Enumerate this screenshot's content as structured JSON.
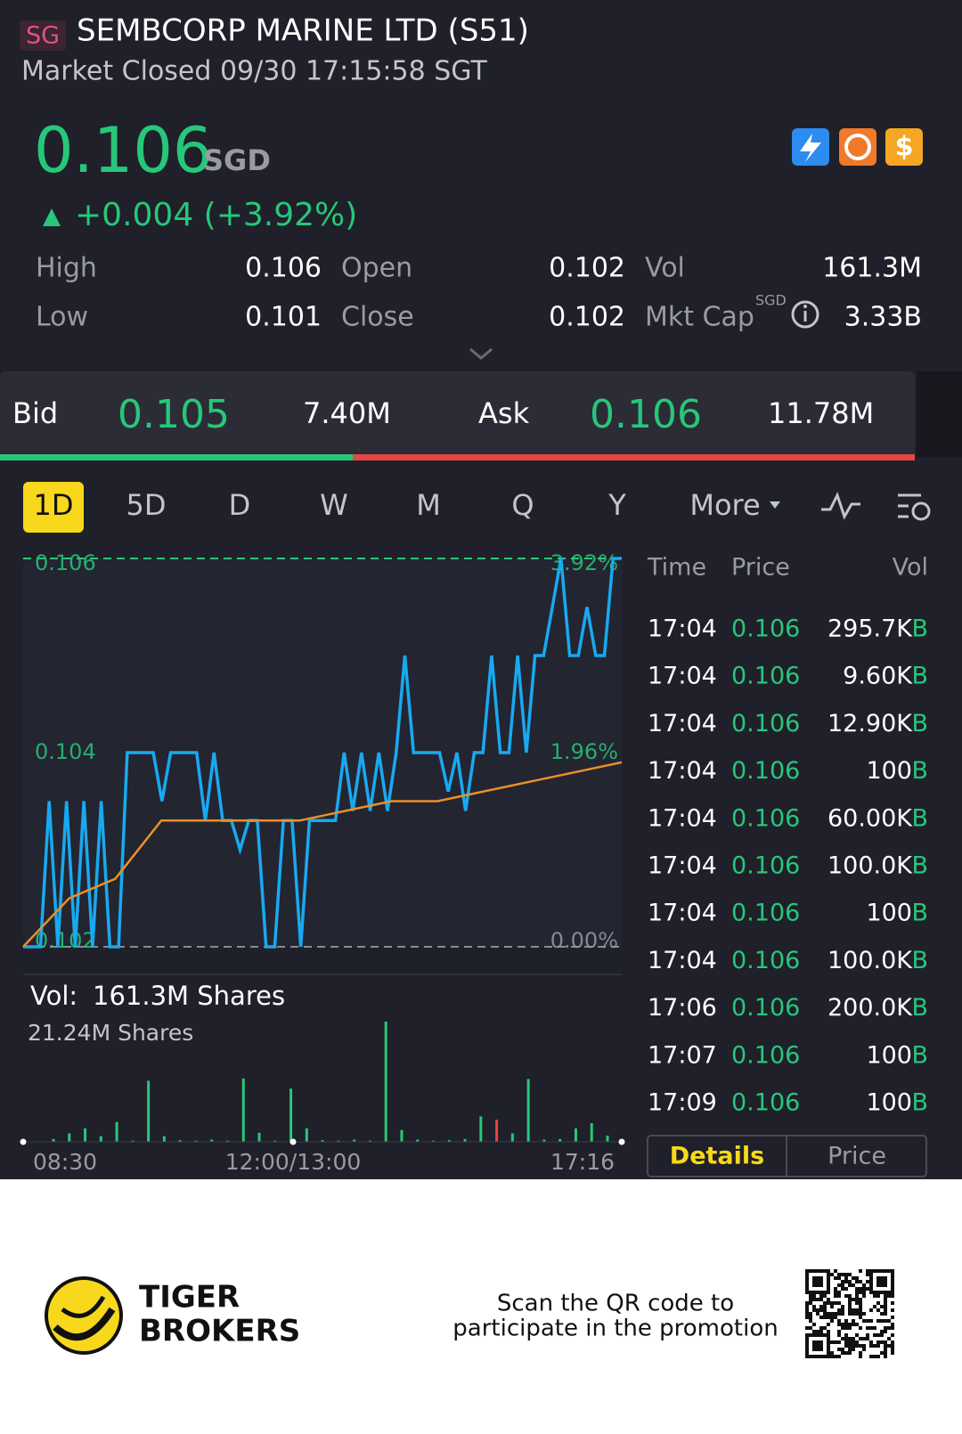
{
  "header": {
    "badge": "SG",
    "title": "SEMBCORP MARINE LTD (S51)",
    "status": "Market Closed 09/30 17:15:58 SGT"
  },
  "quote": {
    "price": "0.106",
    "currency": "SGD",
    "change": "+0.004 (+3.92%)"
  },
  "stats": {
    "rows": [
      [
        "High",
        "0.106",
        "Open",
        "0.102",
        "Vol",
        "161.3M"
      ],
      [
        "Low",
        "0.101",
        "Close",
        "0.102",
        "Mkt Cap",
        "3.33B"
      ]
    ],
    "mkt_cap_currency": "SGD"
  },
  "bid_ask": {
    "bid_label": "Bid",
    "bid": "0.105",
    "bid_size": "7.40M",
    "ask_label": "Ask",
    "ask": "0.106",
    "ask_size": "11.78M"
  },
  "tabs": [
    "1D",
    "5D",
    "D",
    "W",
    "M",
    "Q",
    "Y",
    "More"
  ],
  "chart_data": {
    "type": "line",
    "ylim": [
      0.102,
      0.106
    ],
    "yticks": [
      0.106,
      0.104,
      0.102
    ],
    "y2lim": [
      0,
      3.92
    ],
    "y2ticks": [
      {
        "value": 3.92,
        "label": "3.92%"
      },
      {
        "value": 1.96,
        "label": "1.96%"
      },
      {
        "value": 0,
        "label": "0.00%"
      }
    ],
    "series": [
      {
        "color": "#18a9f0",
        "values": [
          0.102,
          0.102,
          0.102,
          0.1035,
          0.102,
          0.1035,
          0.102,
          0.1035,
          0.102,
          0.1035,
          0.102,
          0.102,
          0.104,
          0.104,
          0.104,
          0.104,
          0.1035,
          0.104,
          0.104,
          0.104,
          0.104,
          0.1033,
          0.104,
          0.1033,
          0.1033,
          0.103,
          0.1033,
          0.1033,
          0.102,
          0.102,
          0.1033,
          0.1033,
          0.102,
          0.1033,
          0.1033,
          0.1033,
          0.1033,
          0.104,
          0.1034,
          0.104,
          0.1034,
          0.104,
          0.1034,
          0.104,
          0.105,
          0.104,
          0.104,
          0.104,
          0.104,
          0.1036,
          0.104,
          0.1034,
          0.104,
          0.104,
          0.105,
          0.104,
          0.104,
          0.105,
          0.104,
          0.105,
          0.105,
          0.1055,
          0.106,
          0.105,
          0.105,
          0.1055,
          0.105,
          0.105,
          0.106,
          0.106
        ]
      },
      {
        "color": "#e8902a",
        "values": [
          0.102,
          0.1025,
          0.1027,
          0.1033,
          0.1033,
          0.1033,
          0.1033,
          0.1034,
          0.1035,
          0.1035,
          0.1036,
          0.1037,
          0.1038,
          0.1039
        ]
      }
    ],
    "volume": {
      "label": "Vol:",
      "total": "161.3M Shares",
      "max_label": "21.24M Shares",
      "ylim": [
        0,
        21.24
      ],
      "values": [
        0.5,
        1.5,
        2.4,
        1.0,
        3.5,
        0.2,
        10.8,
        1.0,
        0.3,
        0.2,
        0.4,
        0.2,
        11.2,
        1.6,
        0.2,
        9.4,
        2.4,
        0.3,
        0.2,
        0.4,
        0.2,
        21.24,
        2.1,
        0.4,
        0.2,
        0.3,
        0.5,
        4.5,
        3.9,
        1.5,
        11.1,
        0.4,
        0.5,
        2.4,
        3.3,
        1.1
      ],
      "colors": [
        "#27c77a",
        "#27c77a",
        "#27c77a",
        "#27c77a",
        "#27c77a",
        "#27c77a",
        "#27c77a",
        "#27c77a",
        "#27c77a",
        "#27c77a",
        "#27c77a",
        "#27c77a",
        "#27c77a",
        "#27c77a",
        "#27c77a",
        "#27c77a",
        "#27c77a",
        "#27c77a",
        "#27c77a",
        "#27c77a",
        "#27c77a",
        "#27c77a",
        "#27c77a",
        "#27c77a",
        "#27c77a",
        "#27c77a",
        "#27c77a",
        "#27c77a",
        "#e84545",
        "#27c77a",
        "#27c77a",
        "#27c77a",
        "#27c77a",
        "#27c77a",
        "#27c77a",
        "#27c77a"
      ]
    },
    "x_labels": [
      "08:30",
      "12:00/13:00",
      "17:16"
    ]
  },
  "trades": {
    "header": [
      "Time",
      "Price",
      "Vol"
    ],
    "rows": [
      [
        "17:04",
        "0.106",
        "295.7K",
        "B"
      ],
      [
        "17:04",
        "0.106",
        "9.60K",
        "B"
      ],
      [
        "17:04",
        "0.106",
        "12.90K",
        "B"
      ],
      [
        "17:04",
        "0.106",
        "100",
        "B"
      ],
      [
        "17:04",
        "0.106",
        "60.00K",
        "B"
      ],
      [
        "17:04",
        "0.106",
        "100.0K",
        "B"
      ],
      [
        "17:04",
        "0.106",
        "100",
        "B"
      ],
      [
        "17:04",
        "0.106",
        "100.0K",
        "B"
      ],
      [
        "17:06",
        "0.106",
        "200.0K",
        "B"
      ],
      [
        "17:07",
        "0.106",
        "100",
        "B"
      ],
      [
        "17:09",
        "0.106",
        "100",
        "B"
      ]
    ],
    "buttons": [
      "Details",
      "Price"
    ]
  },
  "footer": {
    "brand": [
      "TIGER",
      "BROKERS"
    ],
    "promo": [
      "Scan the QR code to",
      "participate in the promotion"
    ]
  }
}
